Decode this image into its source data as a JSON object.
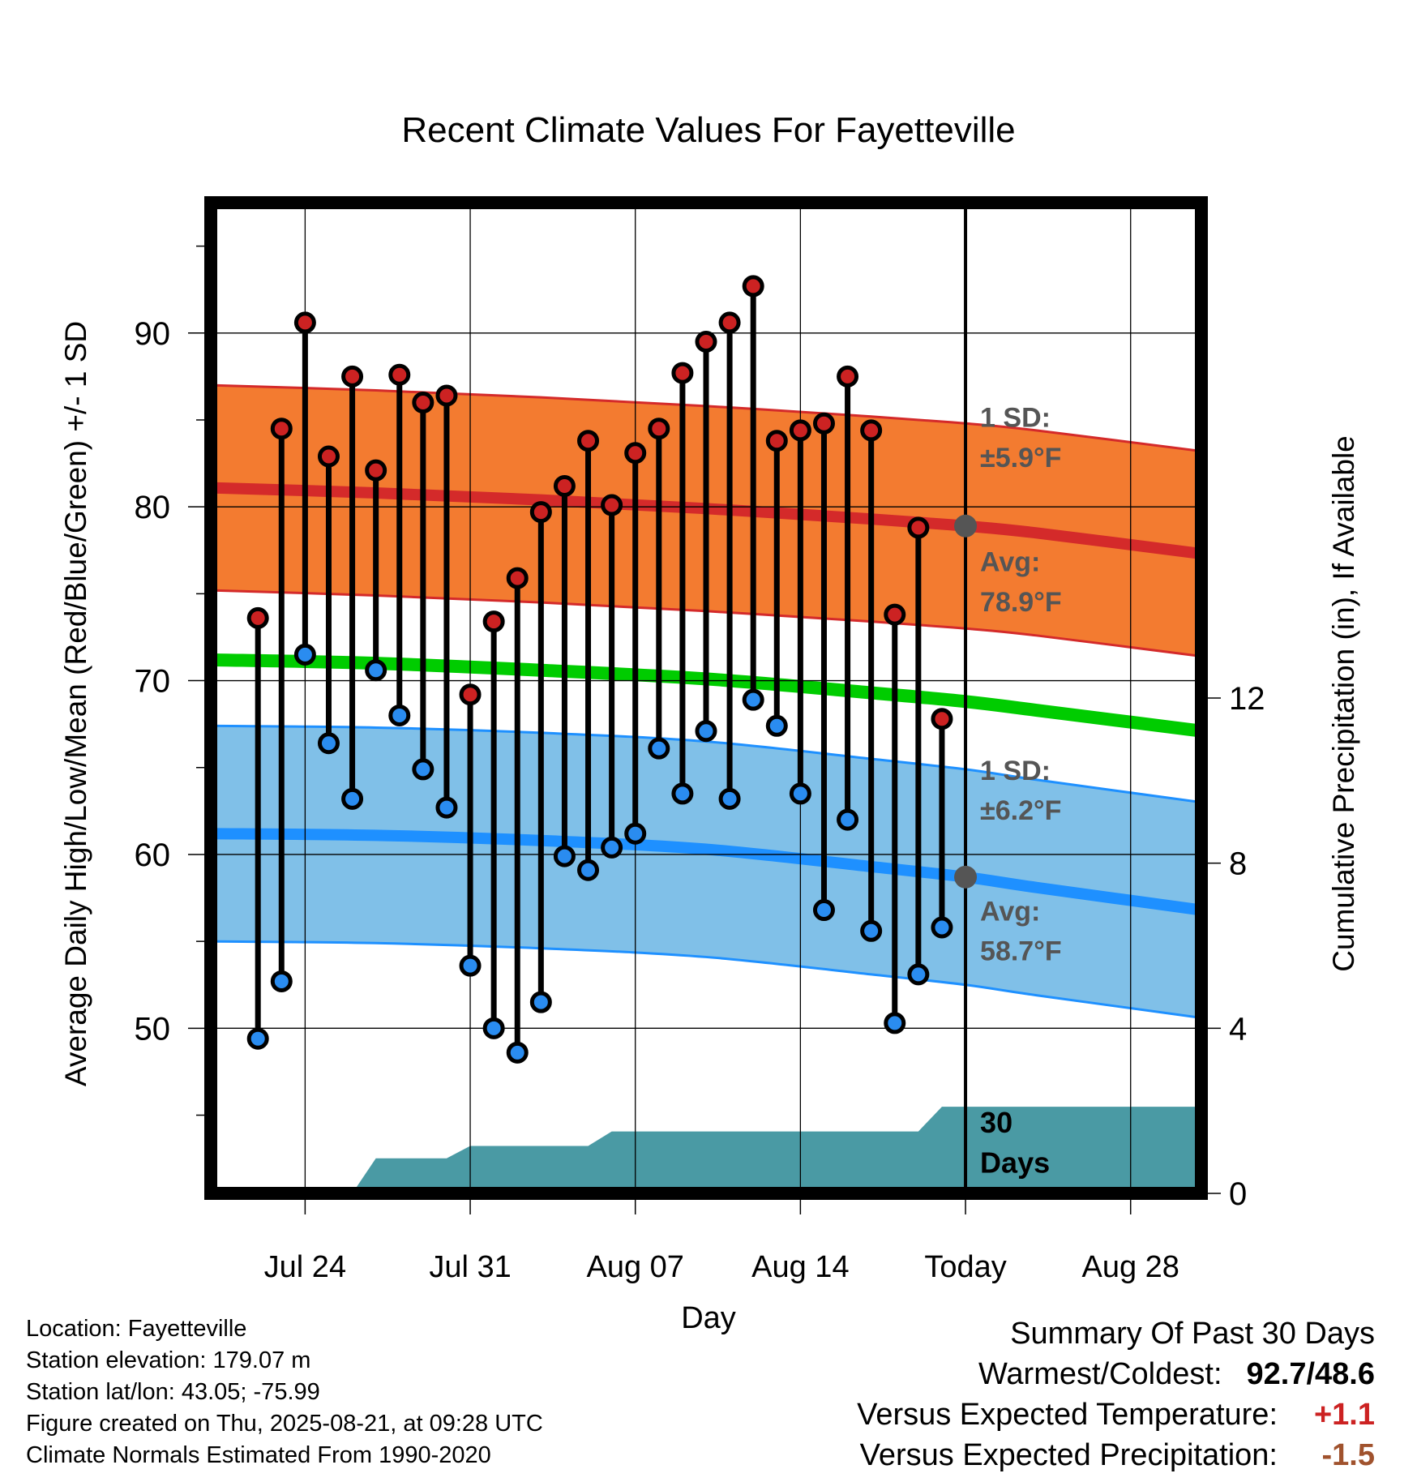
{
  "chart_data": {
    "type": "line",
    "title": "Recent Climate Values For Fayetteville",
    "xlabel": "Day",
    "ylabel": "Average Daily High/Low/Mean (Red/Blue/Green) +/- 1 SD",
    "y2label": "Cumulative Precipitation (in), If Available",
    "xlim": [
      "2025-07-20",
      "2025-08-31"
    ],
    "ylim": [
      40.5,
      97.5
    ],
    "y2lim": [
      0,
      24
    ],
    "x_ticks": [
      "2025-07-24",
      "2025-07-31",
      "2025-08-07",
      "2025-08-14",
      "2025-08-21",
      "2025-08-28"
    ],
    "x_tick_labels": [
      "Jul 24",
      "Jul 31",
      "Aug 07",
      "Aug 14",
      "Today",
      "Aug 28"
    ],
    "y_ticks": [
      50,
      60,
      70,
      80,
      90
    ],
    "y2_ticks": [
      0,
      4,
      8,
      12
    ],
    "grid": true,
    "today": "2025-08-21",
    "observed": {
      "dates": [
        "2025-07-22",
        "2025-07-23",
        "2025-07-24",
        "2025-07-25",
        "2025-07-26",
        "2025-07-27",
        "2025-07-28",
        "2025-07-29",
        "2025-07-30",
        "2025-07-31",
        "2025-08-01",
        "2025-08-02",
        "2025-08-03",
        "2025-08-04",
        "2025-08-05",
        "2025-08-06",
        "2025-08-07",
        "2025-08-08",
        "2025-08-09",
        "2025-08-10",
        "2025-08-11",
        "2025-08-12",
        "2025-08-13",
        "2025-08-14",
        "2025-08-15",
        "2025-08-16",
        "2025-08-17",
        "2025-08-18",
        "2025-08-19",
        "2025-08-20"
      ],
      "high": [
        73.6,
        84.5,
        90.6,
        82.9,
        87.5,
        82.1,
        87.6,
        86.0,
        86.4,
        69.2,
        73.4,
        75.9,
        79.7,
        81.2,
        83.8,
        80.1,
        83.1,
        84.5,
        87.7,
        89.5,
        90.6,
        92.7,
        83.8,
        84.4,
        84.8,
        87.5,
        84.4,
        73.8,
        78.8,
        67.8
      ],
      "low": [
        49.4,
        52.7,
        71.5,
        66.4,
        63.2,
        70.6,
        68.0,
        64.9,
        62.7,
        53.6,
        50.0,
        48.6,
        51.5,
        59.9,
        59.1,
        60.4,
        61.2,
        66.1,
        63.5,
        67.1,
        63.2,
        68.9,
        67.4,
        63.5,
        56.8,
        62.0,
        55.6,
        50.3,
        53.1,
        55.8
      ]
    },
    "normals": {
      "dates": [
        "2025-07-20",
        "2025-07-27",
        "2025-08-03",
        "2025-08-10",
        "2025-08-17",
        "2025-08-21",
        "2025-08-24",
        "2025-08-31"
      ],
      "high_avg": [
        81.1,
        80.8,
        80.4,
        79.9,
        79.3,
        78.9,
        78.5,
        77.3
      ],
      "low_avg": [
        61.2,
        61.1,
        60.8,
        60.3,
        59.3,
        58.7,
        58.1,
        56.8
      ],
      "mean_avg": [
        71.2,
        71.0,
        70.6,
        70.1,
        69.3,
        68.8,
        68.3,
        67.1
      ],
      "high_sd": 5.9,
      "low_sd": 6.2
    },
    "precip": {
      "dates": [
        "2025-07-20",
        "2025-07-26",
        "2025-07-27",
        "2025-07-30",
        "2025-07-31",
        "2025-08-05",
        "2025-08-06",
        "2025-08-19",
        "2025-08-20",
        "2025-08-31"
      ],
      "cumulative": [
        0,
        0,
        0.85,
        0.85,
        1.15,
        1.15,
        1.5,
        1.5,
        2.1,
        2.1
      ]
    },
    "annotations": {
      "high_sd_line1": "1 SD:",
      "high_sd_line2": "±5.9°F",
      "high_avg_line1": "Avg:",
      "high_avg_line2": "78.9°F",
      "low_sd_line1": "1 SD:",
      "low_sd_line2": "±6.2°F",
      "low_avg_line1": "Avg:",
      "low_avg_line2": "58.7°F",
      "days_line1": "30",
      "days_line2": "Days"
    },
    "colors": {
      "high_band": "#f37b30",
      "high_line": "#d42a2a",
      "low_band": "#80c0e8",
      "low_line": "#1e90ff",
      "mean_line": "#00cc00",
      "precip": "#4a9aa4",
      "high_point": "#cc2222",
      "low_point": "#2a8cf0",
      "annotation": "#555555"
    }
  },
  "info": {
    "location": "Location: Fayetteville",
    "elevation": "Station elevation: 179.07 m",
    "latlon": "Station lat/lon: 43.05; -75.99",
    "created": "Figure created on Thu, 2025-08-21, at 09:28 UTC",
    "normals": "Climate Normals Estimated From 1990-2020"
  },
  "summary": {
    "title": "Summary Of Past 30 Days",
    "warmest_label": "Warmest/Coldest:",
    "warmest_value": "92.7/48.6",
    "temp_label": "Versus Expected Temperature:",
    "temp_value": "+1.1",
    "precip_label": "Versus Expected Precipitation:",
    "precip_value": "-1.5",
    "temp_color": "#cc2222",
    "precip_color": "#a0522d"
  }
}
